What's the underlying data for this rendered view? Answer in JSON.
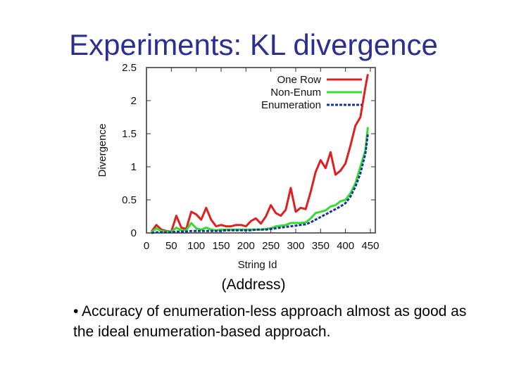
{
  "slide": {
    "title": "Experiments: KL divergence",
    "caption": "(Address)",
    "bullet": "• Accuracy of enumeration-less approach almost as good as the ideal enumeration-based approach."
  },
  "chart_data": {
    "type": "line",
    "xlabel": "String Id",
    "ylabel": "Divergence",
    "xlim": [
      0,
      460
    ],
    "ylim": [
      0,
      2.5
    ],
    "xticks": [
      0,
      50,
      100,
      150,
      200,
      250,
      300,
      350,
      400,
      450
    ],
    "yticks": [
      0,
      0.5,
      1,
      1.5,
      2,
      2.5
    ],
    "ytick_labels": [
      "0",
      "0.5",
      "1",
      "1.5",
      "2",
      "2.5"
    ],
    "grid": false,
    "legend": "top-right",
    "series": [
      {
        "name": "One Row",
        "color": "#e02020",
        "style": "solid",
        "x": [
          10,
          20,
          30,
          40,
          50,
          60,
          70,
          80,
          90,
          100,
          110,
          120,
          130,
          140,
          150,
          160,
          170,
          180,
          190,
          200,
          210,
          220,
          230,
          240,
          250,
          260,
          270,
          280,
          290,
          300,
          310,
          320,
          330,
          340,
          350,
          360,
          370,
          380,
          390,
          400,
          410,
          420,
          430,
          440,
          445
        ],
        "y": [
          0.02,
          0.12,
          0.05,
          0.03,
          0.02,
          0.26,
          0.08,
          0.06,
          0.32,
          0.28,
          0.2,
          0.38,
          0.2,
          0.1,
          0.12,
          0.1,
          0.1,
          0.12,
          0.12,
          0.1,
          0.18,
          0.22,
          0.14,
          0.25,
          0.42,
          0.3,
          0.26,
          0.35,
          0.68,
          0.32,
          0.38,
          0.36,
          0.62,
          0.92,
          1.1,
          0.98,
          1.22,
          0.88,
          0.94,
          1.05,
          1.32,
          1.62,
          1.75,
          2.2,
          2.4
        ]
      },
      {
        "name": "Non-Enum",
        "color": "#33dd33",
        "style": "solid",
        "x": [
          10,
          20,
          30,
          40,
          50,
          60,
          70,
          80,
          90,
          100,
          110,
          120,
          130,
          140,
          150,
          160,
          170,
          180,
          190,
          200,
          210,
          220,
          230,
          240,
          250,
          260,
          270,
          280,
          290,
          300,
          310,
          320,
          330,
          340,
          350,
          360,
          370,
          380,
          390,
          400,
          410,
          420,
          430,
          440,
          445
        ],
        "y": [
          0.01,
          0.07,
          0.03,
          0.02,
          0.02,
          0.08,
          0.04,
          0.04,
          0.15,
          0.07,
          0.05,
          0.08,
          0.05,
          0.04,
          0.05,
          0.05,
          0.05,
          0.05,
          0.05,
          0.05,
          0.05,
          0.05,
          0.05,
          0.06,
          0.07,
          0.1,
          0.11,
          0.12,
          0.15,
          0.15,
          0.15,
          0.16,
          0.22,
          0.3,
          0.32,
          0.34,
          0.4,
          0.42,
          0.48,
          0.5,
          0.6,
          0.75,
          1.0,
          1.25,
          1.6
        ]
      },
      {
        "name": "Enumeration",
        "color": "#1a3399",
        "style": "dashed",
        "x": [
          10,
          20,
          30,
          40,
          50,
          60,
          70,
          80,
          90,
          100,
          110,
          120,
          130,
          140,
          150,
          160,
          170,
          180,
          190,
          200,
          210,
          220,
          230,
          240,
          250,
          260,
          270,
          280,
          290,
          300,
          310,
          320,
          330,
          340,
          350,
          360,
          370,
          380,
          390,
          400,
          410,
          420,
          430,
          440,
          445
        ],
        "y": [
          0.0,
          0.01,
          0.01,
          0.01,
          0.01,
          0.02,
          0.02,
          0.02,
          0.03,
          0.03,
          0.03,
          0.03,
          0.03,
          0.03,
          0.03,
          0.04,
          0.04,
          0.04,
          0.04,
          0.04,
          0.04,
          0.05,
          0.05,
          0.05,
          0.06,
          0.07,
          0.08,
          0.09,
          0.1,
          0.11,
          0.12,
          0.13,
          0.16,
          0.2,
          0.24,
          0.28,
          0.32,
          0.36,
          0.4,
          0.45,
          0.55,
          0.7,
          0.9,
          1.2,
          1.5
        ]
      }
    ]
  }
}
